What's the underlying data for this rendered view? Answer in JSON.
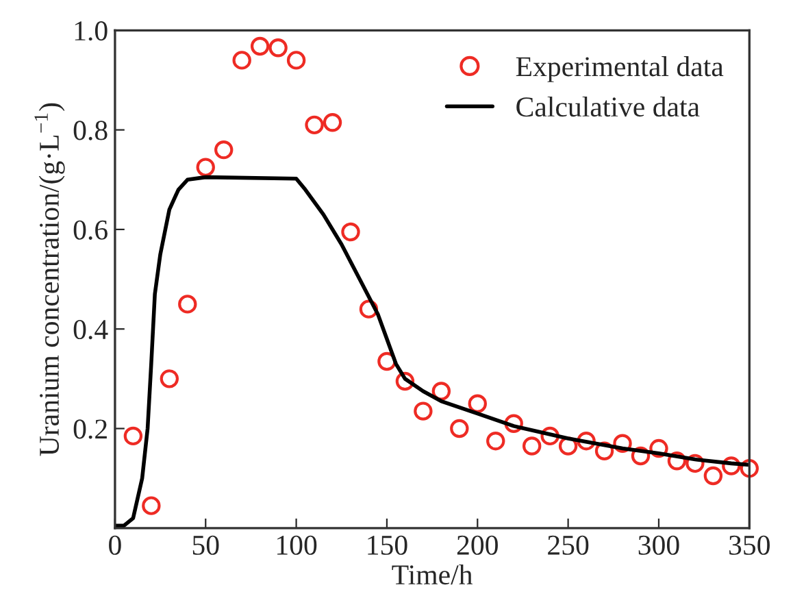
{
  "chart_data": {
    "type": "scatter",
    "xlabel": "Time/h",
    "ylabel": "Uranium concentration/(g·L$^{−1}$)",
    "xlim": [
      0,
      350
    ],
    "ylim": [
      0,
      1.0
    ],
    "xticks": [
      0,
      50,
      100,
      150,
      200,
      250,
      300,
      350
    ],
    "yticks": [
      {
        "value": 0,
        "label": null
      },
      {
        "value": 0.2,
        "label": "0.2"
      },
      {
        "value": 0.4,
        "label": "0.4"
      },
      {
        "value": 0.6,
        "label": "0.6"
      },
      {
        "value": 0.8,
        "label": "0.8"
      },
      {
        "value": 1.0,
        "label": "1.0"
      }
    ],
    "legend": "top right",
    "grid": false,
    "series": [
      {
        "name": "Experimental data",
        "marker": "circle",
        "color": "#ee2b24",
        "x": [
          10,
          20,
          30,
          40,
          50,
          60,
          70,
          80,
          90,
          100,
          110,
          120,
          130,
          140,
          150,
          160,
          170,
          180,
          190,
          200,
          210,
          220,
          230,
          240,
          250,
          260,
          270,
          280,
          290,
          300,
          310,
          320,
          330,
          340,
          350
        ],
        "values": [
          0.185,
          0.045,
          0.3,
          0.45,
          0.725,
          0.76,
          0.94,
          0.968,
          0.965,
          0.94,
          0.81,
          0.815,
          0.595,
          0.44,
          0.335,
          0.295,
          0.235,
          0.275,
          0.2,
          0.25,
          0.175,
          0.21,
          0.165,
          0.185,
          0.165,
          0.175,
          0.155,
          0.17,
          0.145,
          0.16,
          0.135,
          0.13,
          0.105,
          0.125,
          0.12
        ]
      },
      {
        "name": "Calculative data",
        "type": "line",
        "line_style": "solid",
        "color": "#000000",
        "x": [
          0,
          5,
          10,
          15,
          18,
          20,
          22,
          25,
          30,
          35,
          40,
          50,
          100,
          105,
          115,
          125,
          135,
          145,
          150,
          155,
          160,
          170,
          180,
          200,
          220,
          250,
          280,
          300,
          320,
          340,
          350
        ],
        "values": [
          0.005,
          0.005,
          0.02,
          0.1,
          0.2,
          0.33,
          0.47,
          0.55,
          0.64,
          0.68,
          0.7,
          0.705,
          0.702,
          0.68,
          0.63,
          0.57,
          0.5,
          0.43,
          0.38,
          0.33,
          0.3,
          0.275,
          0.255,
          0.23,
          0.205,
          0.18,
          0.16,
          0.15,
          0.138,
          0.13,
          0.127
        ]
      }
    ]
  }
}
